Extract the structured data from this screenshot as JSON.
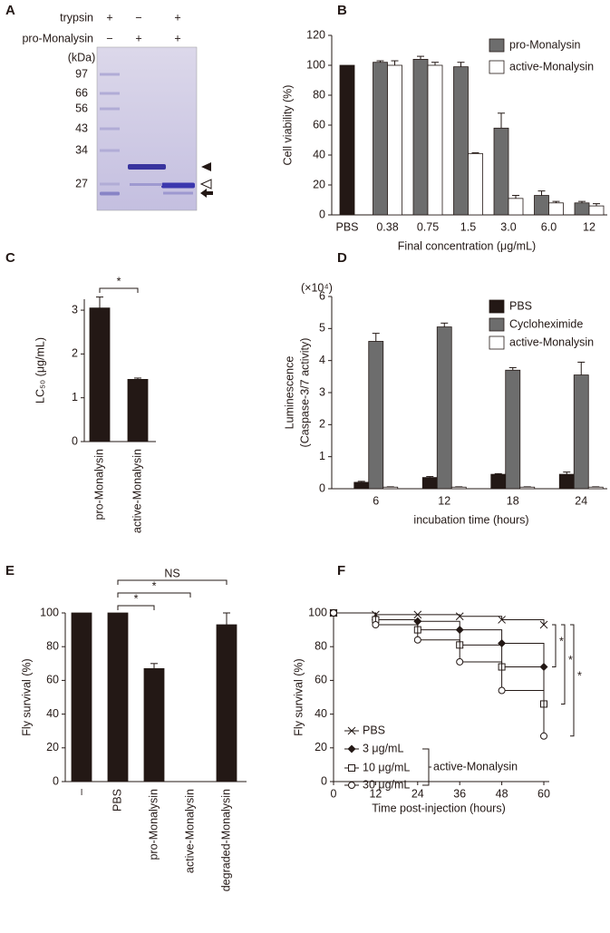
{
  "chart_data": [
    {
      "type": "gel",
      "panel": "A",
      "rows": [
        {
          "label": "trypsin",
          "signs": [
            "+",
            "−",
            "+"
          ]
        },
        {
          "label": "pro-Monalysin",
          "signs": [
            "−",
            "+",
            "+"
          ]
        }
      ],
      "marker_unit": "(kDa)",
      "markers": [
        97,
        66,
        56,
        43,
        34,
        27
      ]
    },
    {
      "type": "bar",
      "panel": "B",
      "ylabel": "Cell viability (%)",
      "xlabel": "Final concentration (μg/mL)",
      "categories": [
        "PBS",
        "0.38",
        "0.75",
        "1.5",
        "3.0",
        "6.0",
        "12"
      ],
      "series": [
        {
          "color": "#231815",
          "values": [
            100,
            null,
            null,
            null,
            null,
            null,
            null
          ],
          "errors": [
            null,
            null,
            null,
            null,
            null,
            null,
            null
          ]
        },
        {
          "name": "pro-Monalysin",
          "color": "#6d6d6d",
          "values": [
            null,
            102,
            104,
            99,
            58,
            13,
            8
          ],
          "errors": [
            null,
            1,
            2,
            3,
            10,
            3,
            1
          ]
        },
        {
          "name": "active-Monalysin",
          "color": "#ffffff",
          "values": [
            null,
            100,
            100,
            41,
            11,
            8,
            6
          ],
          "errors": [
            null,
            3,
            2,
            0.5,
            2,
            1,
            1.5
          ]
        }
      ],
      "ylim": [
        0,
        120
      ],
      "yticks": [
        0,
        20,
        40,
        60,
        80,
        100,
        120
      ]
    },
    {
      "type": "bar",
      "panel": "C",
      "ylabel": "LC₅₀ (μg/mL)",
      "categories": [
        "pro-Monalysin",
        "active-Monalysin"
      ],
      "series": [
        {
          "color": "#231815",
          "values": [
            3.05,
            1.42
          ],
          "errors": [
            0.25,
            0.03
          ]
        }
      ],
      "ylim": [
        0,
        3.25
      ],
      "yticks": [
        0,
        1,
        2,
        3
      ],
      "brackets": [
        {
          "between": [
            0,
            1
          ],
          "label": "*"
        }
      ]
    },
    {
      "type": "bar",
      "panel": "D",
      "ylabel": [
        "Luminescence",
        "(Caspase-3/7 activity)"
      ],
      "xlabel": "incubation time (hours)",
      "multiplier": "(×10⁴)",
      "categories": [
        "6",
        "12",
        "18",
        "24"
      ],
      "series": [
        {
          "name": "PBS",
          "color": "#231815",
          "values": [
            0.2,
            0.35,
            0.45,
            0.45
          ],
          "errors": [
            0.03,
            0.03,
            0.02,
            0.07
          ]
        },
        {
          "name": "Cycloheximide",
          "color": "#6d6d6d",
          "values": [
            4.6,
            5.05,
            3.7,
            3.55
          ],
          "errors": [
            0.25,
            0.12,
            0.08,
            0.4
          ]
        },
        {
          "name": "active-Monalysin",
          "color": "#ffffff",
          "values": [
            0.05,
            0.05,
            0.05,
            0.05
          ],
          "errors": [
            0.01,
            0.01,
            0.01,
            0.01
          ]
        }
      ],
      "ylim": [
        0,
        6
      ],
      "yticks": [
        0,
        1,
        2,
        3,
        4,
        5,
        6
      ]
    },
    {
      "type": "bar",
      "panel": "E",
      "ylabel": "Fly survival (%)",
      "categories": [
        "–",
        "PBS",
        "pro-Monalysin",
        "active-Monalysin",
        "degraded-Monalysin"
      ],
      "series": [
        {
          "color": "#231815",
          "values": [
            100,
            100,
            67,
            0,
            93
          ],
          "errors": [
            null,
            null,
            3,
            null,
            7
          ]
        }
      ],
      "ylim": [
        0,
        100
      ],
      "yticks": [
        0,
        20,
        40,
        60,
        80,
        100
      ],
      "brackets": [
        {
          "between": [
            1,
            2
          ],
          "label": "*"
        },
        {
          "between": [
            1,
            3
          ],
          "label": "*"
        },
        {
          "between": [
            1,
            4
          ],
          "label": "NS"
        }
      ]
    },
    {
      "type": "step",
      "panel": "F",
      "ylabel": "Fly survival (%)",
      "xlabel": "Time post-injection (hours)",
      "x": [
        0,
        12,
        24,
        36,
        48,
        60
      ],
      "series": [
        {
          "name": "PBS",
          "marker": "x",
          "values": [
            100,
            99,
            99,
            98,
            96,
            93
          ]
        },
        {
          "name": "3 μg/mL",
          "marker": "diamond",
          "values": [
            100,
            96,
            95,
            90,
            82,
            68
          ]
        },
        {
          "name": "10 μg/mL",
          "marker": "square",
          "values": [
            100,
            96,
            90,
            81,
            68,
            46
          ]
        },
        {
          "name": "30 μg/mL",
          "marker": "circle",
          "values": [
            100,
            93,
            84,
            71,
            54,
            27
          ]
        }
      ],
      "group_label": "active-Monalysin",
      "xlim": [
        0,
        60
      ],
      "xticks": [
        0,
        12,
        24,
        36,
        48,
        60
      ],
      "ylim": [
        0,
        100
      ],
      "yticks": [
        0,
        20,
        40,
        60,
        80,
        100
      ],
      "brackets": [
        {
          "between": [
            0,
            1
          ],
          "label": "*"
        },
        {
          "between": [
            0,
            2
          ],
          "label": "*"
        },
        {
          "between": [
            0,
            3
          ],
          "label": "*"
        }
      ]
    }
  ]
}
